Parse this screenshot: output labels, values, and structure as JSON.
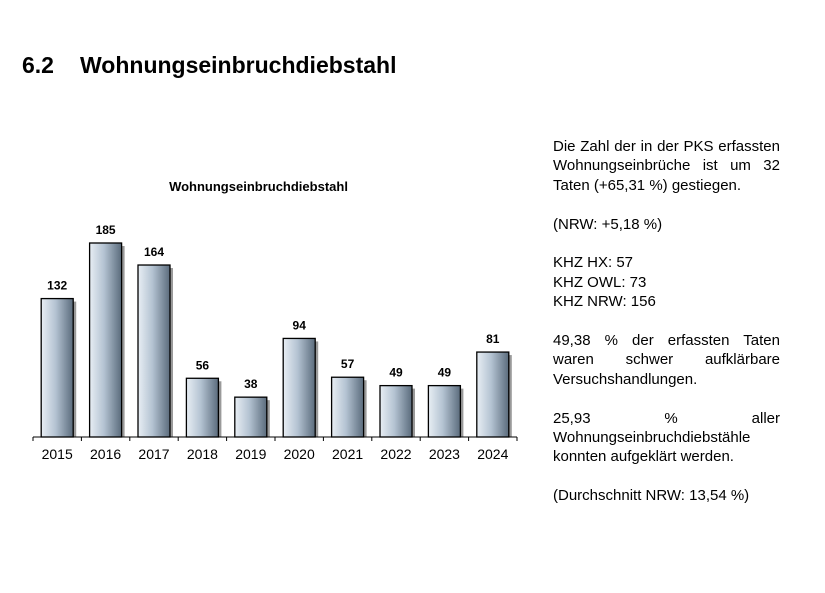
{
  "heading": {
    "number": "6.2",
    "title": "Wohnungseinbruchdiebstahl"
  },
  "side_text": {
    "p1": "Die Zahl der in der PKS erfassten Wohnungseinbrüche ist um 32 Taten (+65,31 %) gestiegen.",
    "p2": "(NRW: +5,18 %)",
    "khz_hx": "KHZ HX: 57",
    "khz_owl": "KHZ OWL: 73",
    "khz_nrw": "KHZ NRW: 156",
    "p4": "49,38 % der erfassten Taten waren schwer aufklärbare Versuchshandlungen.",
    "p5": "25,93 % aller Wohnungseinbruchdiebstähle konnten aufgeklärt werden.",
    "p6": "(Durchschnitt NRW: 13,54 %)"
  },
  "chart_data": {
    "type": "bar",
    "title": "Wohnungseinbruchdiebstahl",
    "categories": [
      "2015",
      "2016",
      "2017",
      "2018",
      "2019",
      "2020",
      "2021",
      "2022",
      "2023",
      "2024"
    ],
    "values": [
      132,
      185,
      164,
      56,
      38,
      94,
      57,
      49,
      49,
      81
    ],
    "xlabel": "",
    "ylabel": "",
    "ylim": [
      0,
      185
    ],
    "grid": false,
    "data_labels": true,
    "colors": {
      "bar_light": "#e8eef4",
      "bar_mid": "#b4c3d2",
      "bar_dark": "#5a6b7c",
      "bar_stroke": "#000000"
    }
  }
}
